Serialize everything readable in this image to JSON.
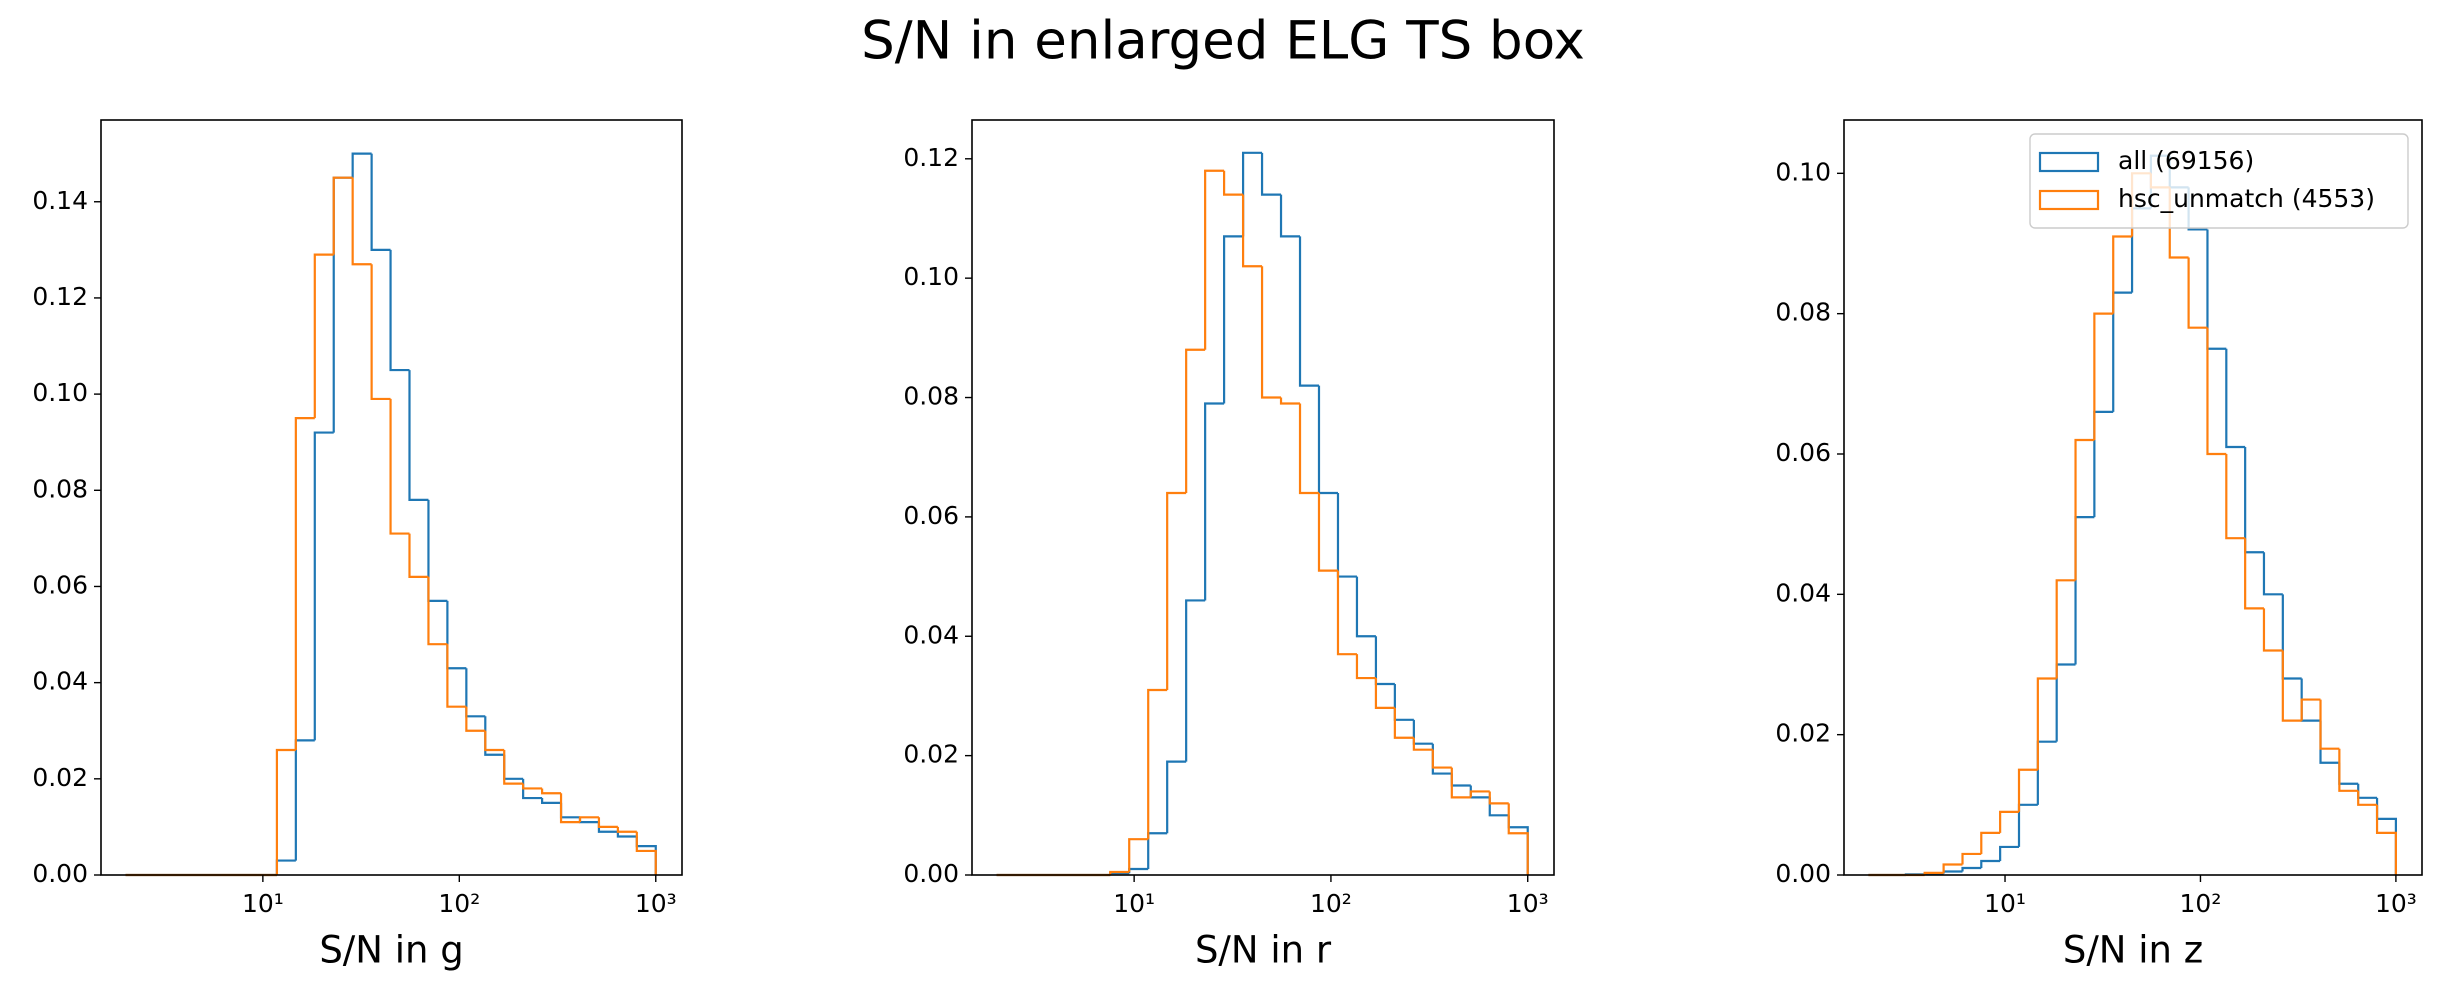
{
  "title": "S/N in enlarged ELG TS box",
  "chart_data": [
    {
      "type": "histogram",
      "xlabel": "S/N in g",
      "log_x": true,
      "bins": [
        2.0,
        2.49,
        3.11,
        3.88,
        4.85,
        6.06,
        7.56,
        9.44,
        11.79,
        14.72,
        18.38,
        22.95,
        28.65,
        35.78,
        44.67,
        55.77,
        69.65,
        86.96,
        108.6,
        135.6,
        169.3,
        211.3,
        263.9,
        329.5,
        411.4,
        513.7,
        641.4,
        800.9,
        1000
      ],
      "series": [
        {
          "color": "#1f77b4",
          "values": [
            0,
            0,
            0,
            0,
            0,
            0,
            0,
            0,
            0.003,
            0.028,
            0.092,
            0.145,
            0.15,
            0.13,
            0.105,
            0.078,
            0.057,
            0.043,
            0.033,
            0.025,
            0.02,
            0.016,
            0.015,
            0.012,
            0.011,
            0.009,
            0.008,
            0.006
          ]
        },
        {
          "color": "#ff7f0e",
          "values": [
            0,
            0,
            0,
            0,
            0,
            0,
            0,
            0,
            0.026,
            0.095,
            0.129,
            0.145,
            0.127,
            0.099,
            0.071,
            0.062,
            0.048,
            0.035,
            0.03,
            0.026,
            0.019,
            0.018,
            0.017,
            0.011,
            0.012,
            0.01,
            0.009,
            0.005
          ]
        }
      ],
      "xlim": [
        1.5,
        1360
      ],
      "ylim": [
        0,
        0.157
      ],
      "xticks": [
        {
          "value": 10,
          "label": "10¹"
        },
        {
          "value": 100,
          "label": "10²"
        },
        {
          "value": 1000,
          "label": "10³"
        }
      ],
      "yticks": [
        {
          "value": 0,
          "label": "0.00"
        },
        {
          "value": 0.02,
          "label": "0.02"
        },
        {
          "value": 0.04,
          "label": "0.04"
        },
        {
          "value": 0.06,
          "label": "0.06"
        },
        {
          "value": 0.08,
          "label": "0.08"
        },
        {
          "value": 0.1,
          "label": "0.10"
        },
        {
          "value": 0.12,
          "label": "0.12"
        },
        {
          "value": 0.14,
          "label": "0.14"
        }
      ]
    },
    {
      "type": "histogram",
      "xlabel": "S/N in r",
      "log_x": true,
      "bins": [
        2.0,
        2.49,
        3.11,
        3.88,
        4.85,
        6.06,
        7.56,
        9.44,
        11.79,
        14.72,
        18.38,
        22.95,
        28.65,
        35.78,
        44.67,
        55.77,
        69.65,
        86.96,
        108.6,
        135.6,
        169.3,
        211.3,
        263.9,
        329.5,
        411.4,
        513.7,
        641.4,
        800.9,
        1000
      ],
      "series": [
        {
          "color": "#1f77b4",
          "values": [
            0,
            0,
            0,
            0,
            0,
            0,
            0.0003,
            0.001,
            0.007,
            0.019,
            0.046,
            0.079,
            0.107,
            0.121,
            0.114,
            0.107,
            0.082,
            0.064,
            0.05,
            0.04,
            0.032,
            0.026,
            0.022,
            0.017,
            0.015,
            0.013,
            0.01,
            0.008
          ]
        },
        {
          "color": "#ff7f0e",
          "values": [
            0,
            0,
            0,
            0,
            0,
            0,
            0.0005,
            0.006,
            0.031,
            0.064,
            0.088,
            0.118,
            0.114,
            0.102,
            0.08,
            0.079,
            0.064,
            0.051,
            0.037,
            0.033,
            0.028,
            0.023,
            0.021,
            0.018,
            0.013,
            0.014,
            0.012,
            0.007
          ]
        }
      ],
      "xlim": [
        1.5,
        1360
      ],
      "ylim": [
        0,
        0.1265
      ],
      "xticks": [
        {
          "value": 10,
          "label": "10¹"
        },
        {
          "value": 100,
          "label": "10²"
        },
        {
          "value": 1000,
          "label": "10³"
        }
      ],
      "yticks": [
        {
          "value": 0,
          "label": "0.00"
        },
        {
          "value": 0.02,
          "label": "0.02"
        },
        {
          "value": 0.04,
          "label": "0.04"
        },
        {
          "value": 0.06,
          "label": "0.06"
        },
        {
          "value": 0.08,
          "label": "0.08"
        },
        {
          "value": 0.1,
          "label": "0.10"
        },
        {
          "value": 0.12,
          "label": "0.12"
        }
      ]
    },
    {
      "type": "histogram",
      "xlabel": "S/N in z",
      "log_x": true,
      "legend": "upper right",
      "bins": [
        2.0,
        2.49,
        3.11,
        3.88,
        4.85,
        6.06,
        7.56,
        9.44,
        11.79,
        14.72,
        18.38,
        22.95,
        28.65,
        35.78,
        44.67,
        55.77,
        69.65,
        86.96,
        108.6,
        135.6,
        169.3,
        211.3,
        263.9,
        329.5,
        411.4,
        513.7,
        641.4,
        800.9,
        1000
      ],
      "series": [
        {
          "name": "all (69156)",
          "color": "#1f77b4",
          "values": [
            0,
            0,
            0.0001,
            0.0002,
            0.0005,
            0.001,
            0.002,
            0.004,
            0.01,
            0.019,
            0.03,
            0.051,
            0.066,
            0.083,
            0.095,
            0.1025,
            0.098,
            0.092,
            0.075,
            0.061,
            0.046,
            0.04,
            0.028,
            0.022,
            0.016,
            0.013,
            0.011,
            0.008
          ]
        },
        {
          "name": "hsc_unmatch (4553)",
          "color": "#ff7f0e",
          "values": [
            0,
            0,
            0,
            0.0003,
            0.0015,
            0.003,
            0.006,
            0.009,
            0.015,
            0.028,
            0.042,
            0.062,
            0.08,
            0.091,
            0.1,
            0.098,
            0.088,
            0.078,
            0.06,
            0.048,
            0.038,
            0.032,
            0.022,
            0.025,
            0.018,
            0.012,
            0.01,
            0.006
          ]
        }
      ],
      "xlim": [
        1.5,
        1360
      ],
      "ylim": [
        0,
        0.1076
      ],
      "xticks": [
        {
          "value": 10,
          "label": "10¹"
        },
        {
          "value": 100,
          "label": "10²"
        },
        {
          "value": 1000,
          "label": "10³"
        }
      ],
      "yticks": [
        {
          "value": 0,
          "label": "0.00"
        },
        {
          "value": 0.02,
          "label": "0.02"
        },
        {
          "value": 0.04,
          "label": "0.04"
        },
        {
          "value": 0.06,
          "label": "0.06"
        },
        {
          "value": 0.08,
          "label": "0.08"
        },
        {
          "value": 0.1,
          "label": "0.10"
        }
      ]
    }
  ]
}
